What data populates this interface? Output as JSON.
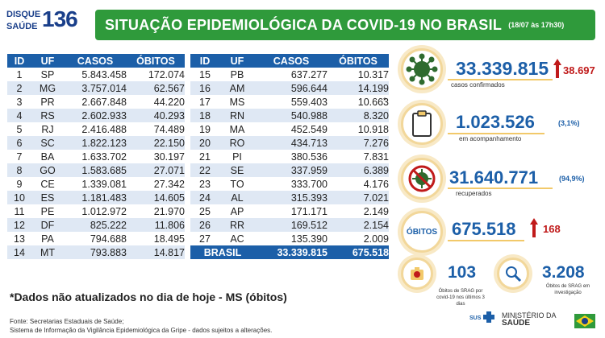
{
  "logo": {
    "word1": "DISQUE",
    "word2": "SAÚDE",
    "number": "136"
  },
  "header": {
    "title": "SITUAÇÃO EPIDEMIOLÓGICA DA COVID-19 NO BRASIL",
    "date": "(18/07 às 17h30)"
  },
  "table_headers": [
    "ID",
    "UF",
    "CASOS",
    "ÓBITOS"
  ],
  "table_left": [
    [
      "1",
      "SP",
      "5.843.458",
      "172.074"
    ],
    [
      "2",
      "MG",
      "3.757.014",
      "62.567"
    ],
    [
      "3",
      "PR",
      "2.667.848",
      "44.220"
    ],
    [
      "4",
      "RS",
      "2.602.933",
      "40.293"
    ],
    [
      "5",
      "RJ",
      "2.416.488",
      "74.489"
    ],
    [
      "6",
      "SC",
      "1.822.123",
      "22.150"
    ],
    [
      "7",
      "BA",
      "1.633.702",
      "30.197"
    ],
    [
      "8",
      "GO",
      "1.583.685",
      "27.071"
    ],
    [
      "9",
      "CE",
      "1.339.081",
      "27.342"
    ],
    [
      "10",
      "ES",
      "1.181.483",
      "14.605"
    ],
    [
      "11",
      "PE",
      "1.012.972",
      "21.970"
    ],
    [
      "12",
      "DF",
      "825.222",
      "11.806"
    ],
    [
      "13",
      "PA",
      "794.688",
      "18.495"
    ],
    [
      "14",
      "MT",
      "793.883",
      "14.817"
    ]
  ],
  "table_right": [
    [
      "15",
      "PB",
      "637.277",
      "10.317"
    ],
    [
      "16",
      "AM",
      "596.644",
      "14.199"
    ],
    [
      "17",
      "MS",
      "559.403",
      "10.663"
    ],
    [
      "18",
      "RN",
      "540.988",
      "8.320"
    ],
    [
      "19",
      "MA",
      "452.549",
      "10.918"
    ],
    [
      "20",
      "RO",
      "434.713",
      "7.276"
    ],
    [
      "21",
      "PI",
      "380.536",
      "7.831"
    ],
    [
      "22",
      "SE",
      "337.959",
      "6.389"
    ],
    [
      "23",
      "TO",
      "333.700",
      "4.176"
    ],
    [
      "24",
      "AL",
      "315.393",
      "7.021"
    ],
    [
      "25",
      "AP",
      "171.171",
      "2.149"
    ],
    [
      "26",
      "RR",
      "169.512",
      "2.154"
    ],
    [
      "27",
      "AC",
      "135.390",
      "2.009"
    ]
  ],
  "total": {
    "label": "BRASIL",
    "cases": "33.339.815",
    "deaths": "675.518"
  },
  "asterisk": "*",
  "note": "*Dados não atualizados no dia de hoje - MS (óbitos)",
  "fonte": {
    "line1": "Fonte: Secretarias Estaduais de Saúde;",
    "line2": "Sistema de Informação da Vigilância Epidemiológica da Gripe - dados sujeitos a alterações."
  },
  "stats": {
    "confirmed": {
      "value": "33.339.815",
      "delta": "38.697",
      "label": "casos confirmados"
    },
    "monitoring": {
      "value": "1.023.526",
      "pct": "(3,1%)",
      "label": "em acompanhamento"
    },
    "recovered": {
      "value": "31.640.771",
      "pct": "(94,9%)",
      "label": "recuperados"
    },
    "deaths": {
      "badge": "ÓBITOS",
      "value": "675.518",
      "delta": "168"
    },
    "srag_deaths": {
      "value": "103",
      "label": "Óbitos de SRAG por covid-19 nos últimos 3 dias"
    },
    "srag_investigation": {
      "value": "3.208",
      "label": "Óbitos de SRAG em investigação"
    }
  },
  "footer_logo": {
    "sus": "SUS",
    "ministry1": "MINISTÉRIO DA",
    "ministry2": "SAÚDE"
  },
  "colors": {
    "green": "#2f9a3b",
    "blue": "#1c5fa8",
    "red": "#c01a1a",
    "gold": "#f2c96a"
  },
  "icons": [
    "virus-icon",
    "clipboard-icon",
    "no-virus-icon",
    "skull-badge-icon",
    "magnifier-icon",
    "brazil-flag-icon"
  ]
}
